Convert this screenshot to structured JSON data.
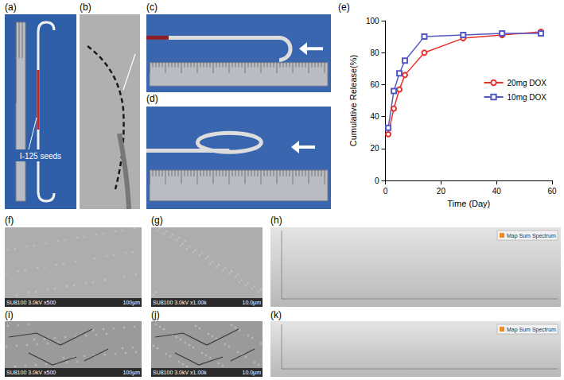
{
  "panels": [
    {
      "label": "(a)",
      "texts": [
        "I-125 seeds"
      ]
    },
    {
      "label": "(b)"
    },
    {
      "label": "(c)"
    },
    {
      "label": "(d)"
    },
    {
      "label": "(e)"
    },
    {
      "label": "(f)",
      "texts": [
        "SU8100 3.0kV x500",
        "100μm"
      ]
    },
    {
      "label": "(g)",
      "texts": [
        "SU8100 3.0kV x1.00k",
        "10.0μm"
      ]
    },
    {
      "label": "(h)",
      "texts": [
        "Map Sum Spectrum"
      ]
    },
    {
      "label": "(i)",
      "texts": [
        "SU8100 3.0kV x500",
        "100μm"
      ]
    },
    {
      "label": "(j)",
      "texts": [
        "SU8100 3.0kV x1.00k",
        "10.0μm"
      ]
    },
    {
      "label": "(k)",
      "texts": [
        "Map Sum Spectrum"
      ]
    }
  ],
  "chart_data": {
    "type": "line",
    "panel": "(e)",
    "x_label": "Time (Day)",
    "y_label": "Cumulative Release(%)",
    "xlim": [
      0,
      60
    ],
    "xticks": [
      0,
      20,
      40,
      60
    ],
    "ylim": [
      0,
      100
    ],
    "yticks": [
      0,
      20,
      40,
      60,
      80,
      100
    ],
    "grid": false,
    "legend": "right",
    "series": [
      {
        "name": "20mg DOX",
        "color": "#e8312c",
        "marker": "circle",
        "x": [
          1,
          3,
          5,
          7,
          14,
          28,
          42,
          56
        ],
        "values": [
          29,
          45,
          57,
          66,
          80,
          89,
          91,
          93
        ]
      },
      {
        "name": "10mg DOX",
        "color": "#5558c4",
        "marker": "square",
        "x": [
          1,
          3,
          5,
          7,
          14,
          28,
          42,
          56
        ],
        "values": [
          33,
          56,
          67,
          75,
          90,
          91,
          92,
          92
        ]
      }
    ]
  }
}
